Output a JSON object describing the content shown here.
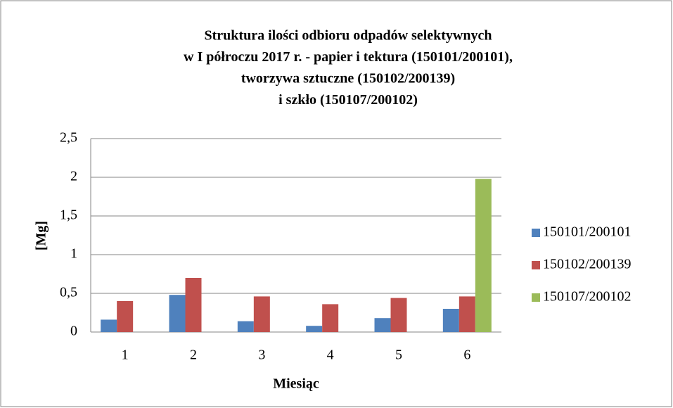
{
  "chart_data": {
    "type": "bar",
    "title": [
      "Struktura ilości odbioru odpadów selektywnych",
      "w I półroczu 2017 r. - papier i tektura (150101/200101),",
      "tworzywa sztuczne (150102/200139)",
      "i szkło (150107/200102)"
    ],
    "x_label": "Miesiąc",
    "y_label": "[Mg]",
    "categories": [
      "1",
      "2",
      "3",
      "4",
      "5",
      "6"
    ],
    "series": [
      {
        "name": "150101/200101",
        "color": "#4f81bd",
        "values": [
          0.16,
          0.48,
          0.14,
          0.08,
          0.18,
          0.3
        ]
      },
      {
        "name": "150102/200139",
        "color": "#c0504d",
        "values": [
          0.4,
          0.7,
          0.46,
          0.36,
          0.44,
          0.46
        ]
      },
      {
        "name": "150107/200102",
        "color": "#9bbb59",
        "values": [
          null,
          null,
          null,
          null,
          null,
          1.98
        ]
      }
    ],
    "ylim": [
      0,
      2.5
    ],
    "yticks": [
      0,
      {
        "value": 0.5,
        "label": "0,5"
      },
      1,
      {
        "value": 1.5,
        "label": "1,5"
      },
      2,
      {
        "value": 2.5,
        "label": "2,5"
      }
    ],
    "grid": true,
    "legend": "right"
  }
}
